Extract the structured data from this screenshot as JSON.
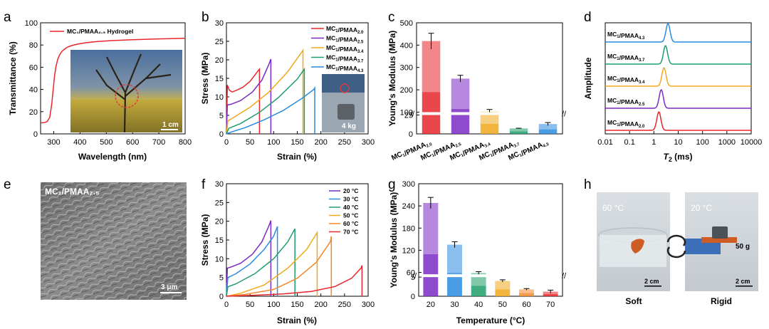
{
  "panels": {
    "a": {
      "label": "a",
      "xlabel": "Wavelength (nm)",
      "ylabel": "Transmittance (%)",
      "legend": "MC₁/PMAA₂.₅ Hydrogel",
      "scalebar": "1 cm"
    },
    "b": {
      "label": "b",
      "xlabel": "Strain (%)",
      "ylabel": "Stress (MPa)",
      "photo_label": "4 kg"
    },
    "c": {
      "label": "c",
      "ylabel": "Young's Modulus (MPa)"
    },
    "d": {
      "label": "d",
      "xlabel_italic": "T",
      "xlabel_sub": "2",
      "xlabel_rest": " (ms)",
      "ylabel": "Amplitude"
    },
    "e": {
      "label": "e",
      "title": "MC₁/PMAA₂.₅",
      "scalebar": "3 μm"
    },
    "f": {
      "label": "f",
      "xlabel": "Strain (%)",
      "ylabel": "Stress (MPa)"
    },
    "g": {
      "label": "g",
      "xlabel": "Temperature (°C)",
      "ylabel": "Young's Modulus (MPa)"
    },
    "h": {
      "label": "h",
      "left_temp": "60 °C",
      "right_temp": "20 °C",
      "weight": "50 g",
      "scale_left": "2 cm",
      "scale_right": "2 cm",
      "left_caption": "Soft",
      "right_caption": "Rigid"
    }
  },
  "chart_data": [
    {
      "id": "a",
      "type": "line",
      "xlim": [
        250,
        800
      ],
      "ylim": [
        0,
        100
      ],
      "xticks": [
        300,
        400,
        500,
        600,
        700,
        800
      ],
      "yticks": [
        0,
        20,
        40,
        60,
        80,
        100
      ],
      "series": [
        {
          "name": "MC₁/PMAA₂.₅ Hydrogel",
          "color": "#e8262b",
          "x": [
            250,
            262,
            275,
            285,
            292,
            298,
            303,
            308,
            315,
            322,
            330,
            340,
            352,
            368,
            390,
            420,
            460,
            520,
            600,
            700,
            800
          ],
          "y": [
            10,
            10,
            11,
            15,
            26,
            40,
            52,
            60,
            67,
            71,
            74,
            76,
            78,
            79.5,
            80.8,
            82,
            83,
            84,
            84.8,
            85.5,
            86
          ]
        }
      ]
    },
    {
      "id": "b",
      "type": "line",
      "xlim": [
        0,
        300
      ],
      "ylim": [
        0,
        30
      ],
      "xticks": [
        0,
        50,
        100,
        150,
        200,
        250,
        300
      ],
      "yticks": [
        0,
        5,
        10,
        15,
        20,
        25,
        30
      ],
      "series": [
        {
          "name": "MC₁/PMAA₂.₀",
          "color": "#e8262b",
          "x": [
            0,
            2,
            6,
            12,
            22,
            35,
            50,
            62,
            70,
            70
          ],
          "y": [
            0,
            13.2,
            11.8,
            11.3,
            11.8,
            12.6,
            14.2,
            16.2,
            17.5,
            0
          ]
        },
        {
          "name": "MC₁/PMAA₂.₅",
          "color": "#7b2bc4",
          "x": [
            0,
            2,
            10,
            30,
            55,
            75,
            90,
            94,
            94
          ],
          "y": [
            0,
            7.8,
            8.0,
            9.0,
            11.3,
            14.5,
            18.8,
            20.2,
            0
          ]
        },
        {
          "name": "MC₁/PMAA₃.₄",
          "color": "#f0a81c",
          "x": [
            0,
            3,
            20,
            50,
            90,
            130,
            158,
            162,
            162
          ],
          "y": [
            0,
            3.5,
            4.8,
            7.2,
            11.3,
            16.8,
            21.8,
            22.6,
            0
          ]
        },
        {
          "name": "MC₁/PMAA₃.₇",
          "color": "#1e9e6a",
          "x": [
            0,
            5,
            30,
            70,
            110,
            150,
            165,
            165
          ],
          "y": [
            0,
            1.5,
            2.8,
            5.8,
            9.8,
            14.8,
            17.5,
            0
          ]
        },
        {
          "name": "MC₁/PMAA₄.₃",
          "color": "#2a8be0",
          "x": [
            0,
            10,
            40,
            80,
            120,
            160,
            185,
            187,
            187
          ],
          "y": [
            0,
            0.5,
            1.7,
            3.8,
            6.3,
            9.6,
            12.0,
            12.4,
            0
          ]
        }
      ]
    },
    {
      "id": "c",
      "type": "bar",
      "categories": [
        "MC₁/PMAA₂.₀",
        "MC₁/PMAA₂.₅",
        "MC₁/PMAA₃.₄",
        "MC₁/PMAA₃.₇",
        "MC₁/PMAA₄.₃"
      ],
      "values": [
        418,
        250,
        102,
        27,
        13
      ],
      "errors": [
        35,
        15,
        10,
        1,
        2
      ],
      "colors": [
        "#e8262b",
        "#7b2bc4",
        "#f0a81c",
        "#1e9e6a",
        "#2a8be0"
      ],
      "axis_break": [
        25,
        100
      ],
      "yticks": [
        0,
        25,
        100,
        200,
        300,
        400,
        500
      ]
    },
    {
      "id": "d",
      "type": "line",
      "xscale": "log",
      "xlim": [
        0.01,
        10000
      ],
      "xticks": [
        0.01,
        0.1,
        1,
        10,
        100,
        1000,
        10000
      ],
      "xticklabels": [
        "0.01",
        "0.1",
        "1",
        "10",
        "100",
        "1000",
        "10000"
      ],
      "series": [
        {
          "name": "MC₁/PMAA₂.₀",
          "color": "#e8262b",
          "peak": 1.6
        },
        {
          "name": "MC₁/PMAA₂.₅",
          "color": "#7b2bc4",
          "peak": 2.0
        },
        {
          "name": "MC₁/PMAA₃.₄",
          "color": "#f0a81c",
          "peak": 2.6
        },
        {
          "name": "MC₁/PMAA₃.₇",
          "color": "#1e9e6a",
          "peak": 3.0
        },
        {
          "name": "MC₁/PMAA₄.₃",
          "color": "#2a8be0",
          "peak": 3.8
        }
      ]
    },
    {
      "id": "f",
      "type": "line",
      "xlim": [
        0,
        300
      ],
      "ylim": [
        0,
        30
      ],
      "xticks": [
        0,
        50,
        100,
        150,
        200,
        250,
        300
      ],
      "yticks": [
        0,
        5,
        10,
        15,
        20,
        25,
        30
      ],
      "series": [
        {
          "name": "20 °C",
          "color": "#7b2bc4",
          "x": [
            0,
            2,
            10,
            30,
            55,
            75,
            90,
            94,
            94
          ],
          "y": [
            0,
            7.5,
            7.8,
            8.8,
            11.2,
            14.5,
            18.8,
            20.2,
            0
          ]
        },
        {
          "name": "30 °C",
          "color": "#2a8be0",
          "x": [
            0,
            3,
            20,
            50,
            80,
            100,
            108,
            108
          ],
          "y": [
            0,
            5.0,
            6.0,
            8.6,
            12.5,
            16.0,
            18.6,
            0
          ]
        },
        {
          "name": "40 °C",
          "color": "#1e9e6a",
          "x": [
            0,
            3,
            20,
            60,
            100,
            130,
            145,
            145
          ],
          "y": [
            0,
            2.5,
            3.3,
            6.0,
            10.0,
            14.5,
            18.0,
            0
          ]
        },
        {
          "name": "50 °C",
          "color": "#f0a81c",
          "x": [
            0,
            30,
            80,
            130,
            170,
            192,
            192
          ],
          "y": [
            0,
            0.8,
            3.0,
            7.5,
            12.5,
            17.0,
            0
          ]
        },
        {
          "name": "60 °C",
          "color": "#f28a2e",
          "x": [
            0,
            40,
            100,
            150,
            190,
            220,
            222,
            222
          ],
          "y": [
            0,
            0.5,
            1.8,
            4.8,
            9.0,
            14.5,
            16.0,
            0
          ]
        },
        {
          "name": "70 °C",
          "color": "#e8262b",
          "x": [
            0,
            50,
            120,
            180,
            230,
            265,
            285,
            287,
            287
          ],
          "y": [
            0,
            0.2,
            0.6,
            1.3,
            2.6,
            4.8,
            7.5,
            8.2,
            0
          ]
        }
      ]
    },
    {
      "id": "g",
      "type": "bar",
      "categories": [
        "20",
        "30",
        "40",
        "50",
        "60",
        "70"
      ],
      "values": [
        248,
        135,
        58,
        4,
        1.8,
        1.2
      ],
      "errors": [
        15,
        8,
        4,
        0.3,
        0.2,
        0.4
      ],
      "colors": [
        "#7b2bc4",
        "#2a8be0",
        "#1e9e6a",
        "#f0a81c",
        "#f28a2e",
        "#e8262b"
      ],
      "axis_break": [
        5,
        55
      ],
      "yticks": [
        0,
        5,
        60,
        120,
        180,
        240,
        300
      ]
    }
  ]
}
